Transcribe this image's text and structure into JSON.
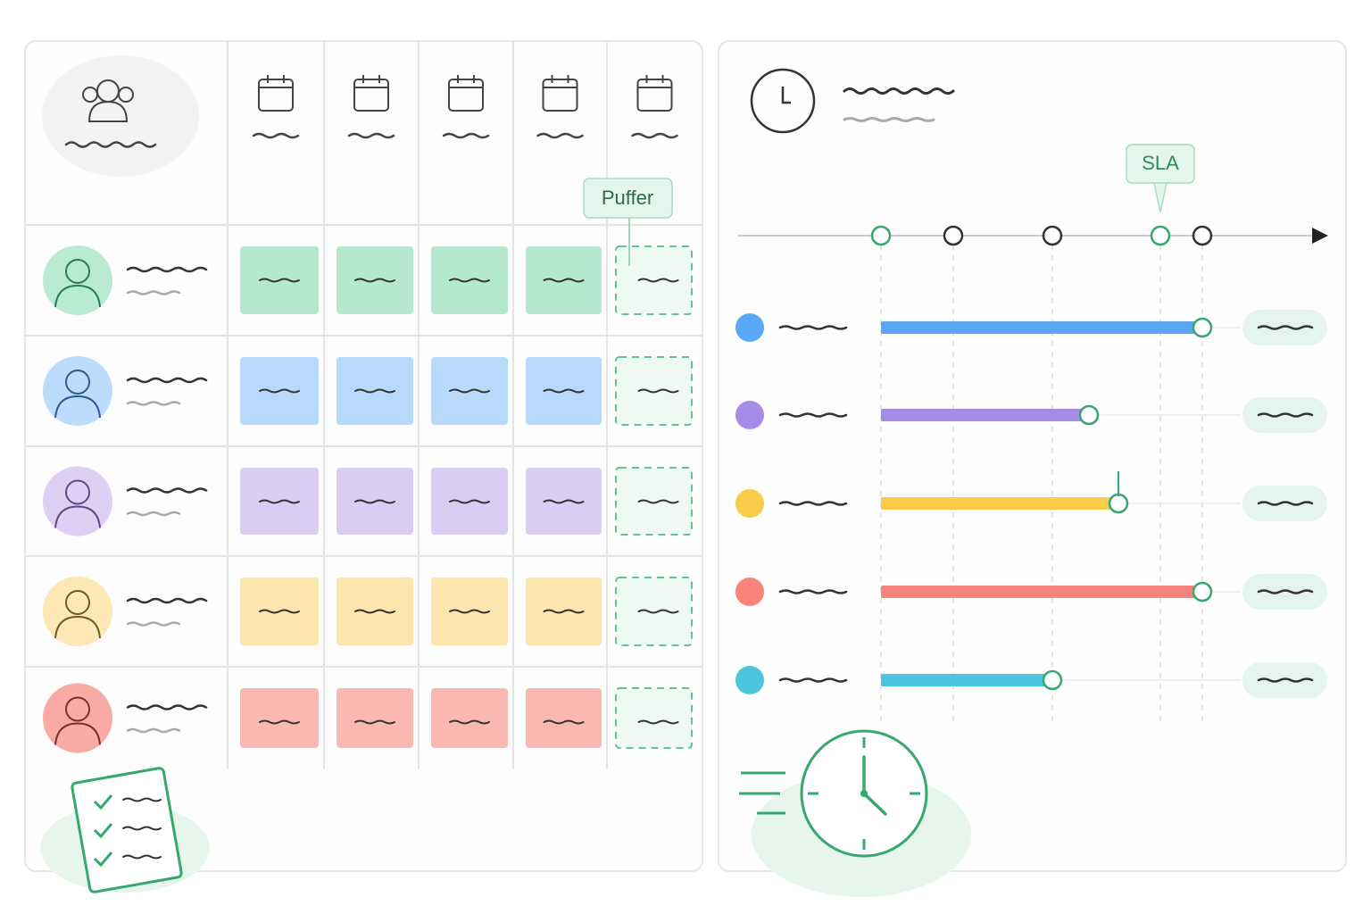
{
  "labels": {
    "buffer": "Puffer",
    "sla": "SLA"
  }
}
